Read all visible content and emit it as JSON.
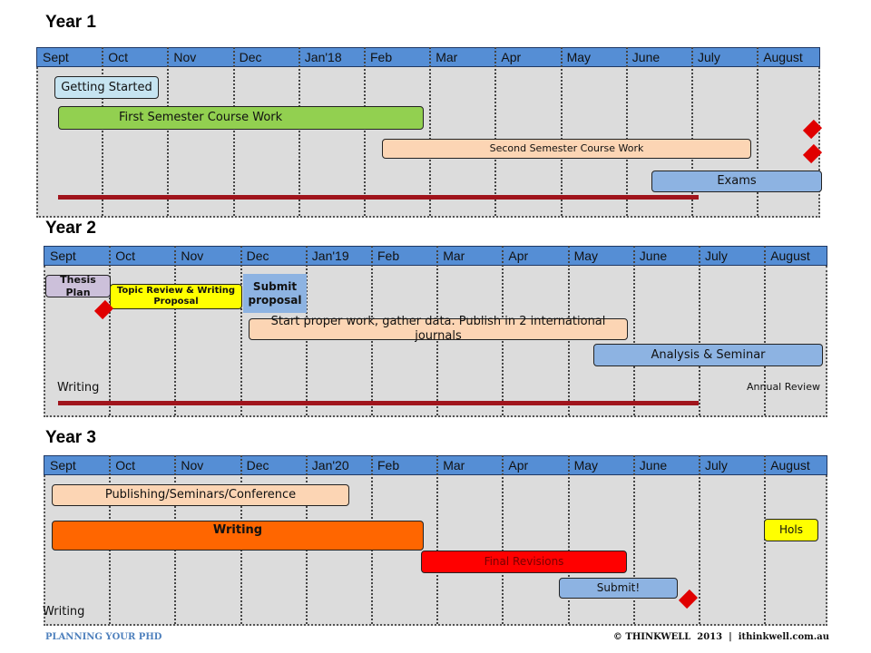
{
  "years": [
    {
      "title": "Year 1",
      "months": [
        "Sept",
        "Oct",
        "Nov",
        "Dec",
        "Jan'18",
        "Feb",
        "Mar",
        "Apr",
        "May",
        "June",
        "July",
        "August"
      ],
      "bars": [
        {
          "label": "Getting Started",
          "color": "#c6e4f1"
        },
        {
          "label": "First Semester Course Work",
          "color": "#92d050"
        },
        {
          "label": "Second Semester Course Work",
          "color": "#fcd5b4"
        },
        {
          "label": "Exams",
          "color": "#8db3e2"
        }
      ],
      "notes": []
    },
    {
      "title": "Year 2",
      "months": [
        "Sept",
        "Oct",
        "Nov",
        "Dec",
        "Jan'19",
        "Feb",
        "Mar",
        "Apr",
        "May",
        "June",
        "July",
        "August"
      ],
      "bars": [
        {
          "label": "Thesis Plan",
          "color": "#ccc0da"
        },
        {
          "label": "Topic Review & Writing Proposal",
          "color": "#ffff00"
        },
        {
          "label": "Submit proposal",
          "color": "#8db3e2"
        },
        {
          "label": "Start proper work, gather data. Publish in 2 international journals",
          "color": "#fcd5b4"
        },
        {
          "label": "Analysis & Seminar",
          "color": "#8db3e2"
        }
      ],
      "notes": [
        "Writing",
        "Annual Review"
      ]
    },
    {
      "title": "Year 3",
      "months": [
        "Sept",
        "Oct",
        "Nov",
        "Dec",
        "Jan'20",
        "Feb",
        "Mar",
        "Apr",
        "May",
        "June",
        "July",
        "August"
      ],
      "bars": [
        {
          "label": "Publishing/Seminars/Conference",
          "color": "#fcd5b4"
        },
        {
          "label": "Writing",
          "color": "#ff6600"
        },
        {
          "label": "Hols",
          "color": "#ffff00"
        },
        {
          "label": "Final Revisions",
          "color": "#ff0000"
        },
        {
          "label": "Submit!",
          "color": "#8db3e2"
        }
      ],
      "notes": [
        "Writing"
      ]
    }
  ],
  "footer": {
    "left": "PLANNING YOUR PHD",
    "right": "© THINKWELL  2013  |  ithinkwell.com.au"
  },
  "colors": {
    "header": "#558ed5",
    "milestone": "#e00000",
    "writing_line": "#a0141c"
  }
}
